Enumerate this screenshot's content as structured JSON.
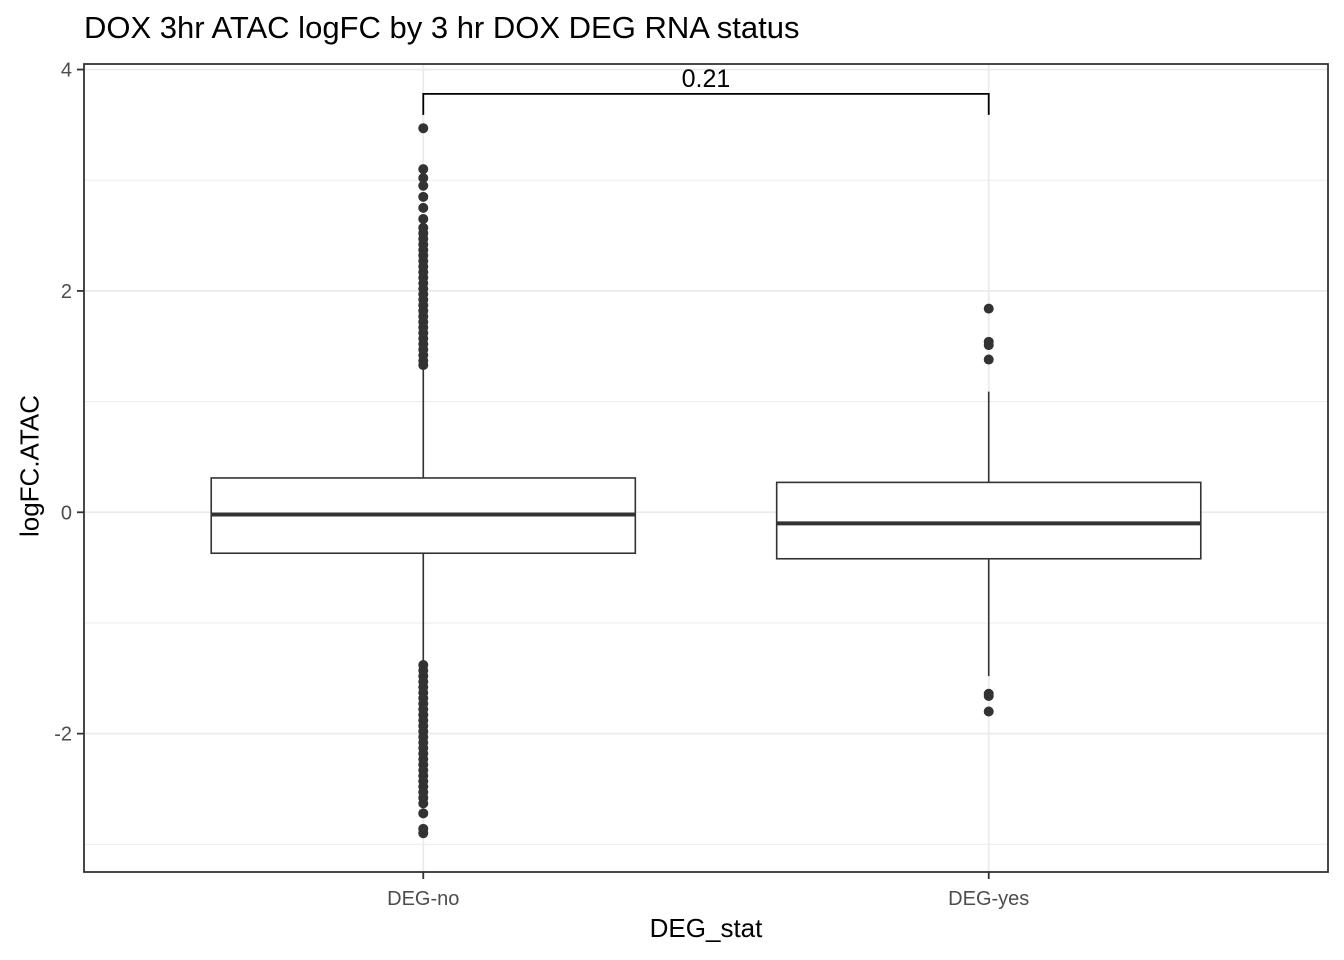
{
  "chart_data": {
    "type": "box",
    "title": "DOX 3hr ATAC logFC by 3 hr DOX DEG RNA status",
    "xlabel": "DEG_stat",
    "ylabel": "logFC.ATAC",
    "ylim": [
      -3.25,
      4.05
    ],
    "yticks": [
      -2,
      0,
      2,
      4
    ],
    "ytick_labels": [
      "-2",
      "0",
      "2",
      "4"
    ],
    "grid": true,
    "categories": [
      "DEG-no",
      "DEG-yes"
    ],
    "boxes": [
      {
        "category": "DEG-no",
        "whisker_low": -1.35,
        "q1": -0.37,
        "median": -0.02,
        "q3": 0.31,
        "whisker_high": 1.3,
        "outliers_high": [
          1.33,
          1.37,
          1.42,
          1.47,
          1.52,
          1.57,
          1.62,
          1.67,
          1.72,
          1.77,
          1.82,
          1.87,
          1.92,
          1.97,
          2.02,
          2.07,
          2.12,
          2.17,
          2.22,
          2.27,
          2.32,
          2.37,
          2.42,
          2.47,
          2.52,
          2.57,
          2.65,
          2.75,
          2.85,
          2.95,
          3.02,
          3.1,
          3.47
        ],
        "outliers_low": [
          -1.38,
          -1.43,
          -1.48,
          -1.53,
          -1.58,
          -1.63,
          -1.68,
          -1.73,
          -1.78,
          -1.83,
          -1.88,
          -1.93,
          -1.98,
          -2.03,
          -2.08,
          -2.13,
          -2.18,
          -2.23,
          -2.28,
          -2.33,
          -2.38,
          -2.43,
          -2.48,
          -2.53,
          -2.58,
          -2.63,
          -2.72,
          -2.86,
          -2.9
        ]
      },
      {
        "category": "DEG-yes",
        "whisker_low": -1.48,
        "q1": -0.42,
        "median": -0.1,
        "q3": 0.27,
        "whisker_high": 1.09,
        "outliers_high": [
          1.38,
          1.51,
          1.54,
          1.84
        ],
        "outliers_low": [
          -1.64,
          -1.66,
          -1.8
        ]
      }
    ],
    "annotations": [
      {
        "type": "bracket",
        "from": "DEG-no",
        "to": "DEG-yes",
        "y": 3.78,
        "label": "0.21"
      }
    ],
    "colors": {
      "box_line": "#333333",
      "box_fill": "#ffffff",
      "grid": "#ebebeb",
      "panel_border": "#333333"
    }
  }
}
